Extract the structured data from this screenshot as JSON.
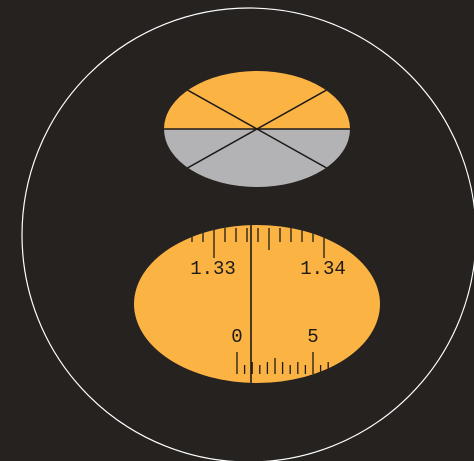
{
  "colors": {
    "background": "#252220",
    "field_ring": "#ffffff",
    "bright_field": "#fbb444",
    "dark_field": "#b3b3b5",
    "lines": "#1e1a17"
  },
  "refractive_index_scale": {
    "left_label": "1.33",
    "right_label": "1.34",
    "minor_divisions_between_labels": 10
  },
  "vernier_scale": {
    "zero_label": "0",
    "five_label": "5"
  }
}
